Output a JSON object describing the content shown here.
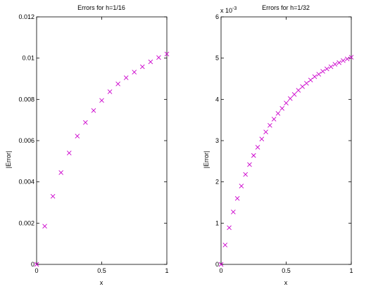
{
  "figure": {
    "background": "#ffffff",
    "marker_color": "#cc00cc",
    "marker_symbol": "x"
  },
  "chart_data": [
    {
      "type": "scatter",
      "title": "Errors for h=1/16",
      "xlabel": "x",
      "ylabel": "|Error|",
      "xlim": [
        0,
        1
      ],
      "ylim": [
        0,
        0.012
      ],
      "xticks": [
        0,
        0.5,
        1
      ],
      "xtick_labels": [
        "0",
        "0.5",
        "1"
      ],
      "yticks": [
        0,
        0.002,
        0.004,
        0.006,
        0.008,
        0.01,
        0.012
      ],
      "ytick_labels": [
        "0",
        "0.002",
        "0.004",
        "0.006",
        "0.008",
        "0.01",
        "0.012"
      ],
      "y_exponent_label": "",
      "grid": false,
      "series": [
        {
          "x": [
            0,
            0.0625,
            0.125,
            0.1875,
            0.25,
            0.3125,
            0.375,
            0.4375,
            0.5,
            0.5625,
            0.625,
            0.6875,
            0.75,
            0.8125,
            0.875,
            0.9375,
            1
          ],
          "y": [
            0,
            0.00185,
            0.0033,
            0.00445,
            0.0054,
            0.00622,
            0.00688,
            0.00746,
            0.00795,
            0.00837,
            0.00875,
            0.00905,
            0.00932,
            0.00958,
            0.00982,
            0.01003,
            0.0102
          ]
        }
      ]
    },
    {
      "type": "scatter",
      "title": "Errors for h=1/32",
      "xlabel": "x",
      "ylabel": "|Error|",
      "xlim": [
        0,
        1
      ],
      "ylim": [
        0,
        6
      ],
      "xticks": [
        0,
        0.5,
        1
      ],
      "xtick_labels": [
        "0",
        "0.5",
        "1"
      ],
      "yticks": [
        0,
        1,
        2,
        3,
        4,
        5,
        6
      ],
      "ytick_labels": [
        "0",
        "1",
        "2",
        "3",
        "4",
        "5",
        "6"
      ],
      "y_exponent_label": "x 10",
      "y_exponent_power": "-3",
      "grid": false,
      "series": [
        {
          "x": [
            0,
            0.03125,
            0.0625,
            0.09375,
            0.125,
            0.15625,
            0.1875,
            0.21875,
            0.25,
            0.28125,
            0.3125,
            0.34375,
            0.375,
            0.40625,
            0.4375,
            0.46875,
            0.5,
            0.53125,
            0.5625,
            0.59375,
            0.625,
            0.65625,
            0.6875,
            0.71875,
            0.75,
            0.78125,
            0.8125,
            0.84375,
            0.875,
            0.90625,
            0.9375,
            0.96875,
            1
          ],
          "y": [
            0,
            0.47,
            0.89,
            1.27,
            1.6,
            1.9,
            2.18,
            2.42,
            2.64,
            2.84,
            3.04,
            3.21,
            3.37,
            3.52,
            3.66,
            3.78,
            3.91,
            4.02,
            4.12,
            4.22,
            4.31,
            4.39,
            4.47,
            4.55,
            4.61,
            4.68,
            4.74,
            4.79,
            4.85,
            4.89,
            4.94,
            4.98,
            5.02
          ]
        }
      ]
    }
  ]
}
